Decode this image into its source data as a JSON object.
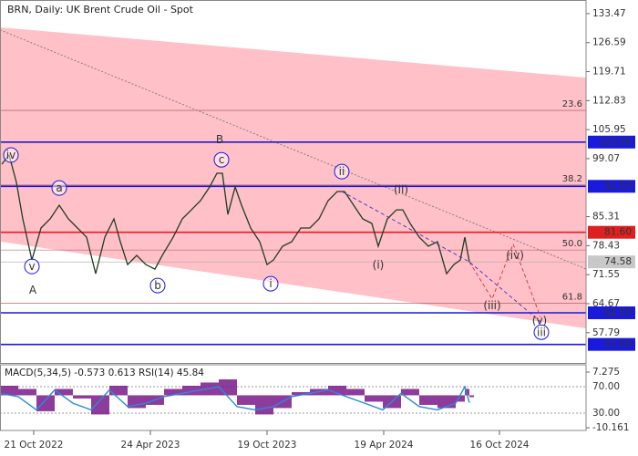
{
  "chart_data": [
    {
      "type": "line",
      "title": "BRN, Daily:  UK Brent Crude Oil - Spot",
      "xlim": [
        0,
        643
      ],
      "xticks": [
        {
          "value": 37,
          "label": "21 Oct 2022"
        },
        {
          "value": 165,
          "label": "24 Apr 2023"
        },
        {
          "value": 293,
          "label": "19 Oct 2023"
        },
        {
          "value": 421,
          "label": "19 Apr 2024"
        },
        {
          "value": 548,
          "label": "16 Oct 2024"
        }
      ],
      "ylim": [
        50.6,
        136.7
      ],
      "yticks": [
        133.47,
        126.59,
        119.71,
        112.83,
        105.95,
        99.07,
        85.31,
        78.43,
        71.55,
        64.67,
        57.79
      ],
      "channel": {
        "upper": [
          130.2,
          118.3
        ],
        "lower": [
          79.4,
          58.8
        ],
        "color": "#ffc0c8"
      },
      "trendline": {
        "values": [
          129.6,
          72.9
        ],
        "color": "#777"
      },
      "fib_levels": [
        {
          "label": "23.6",
          "value": 110.5
        },
        {
          "label": "38.2",
          "value": 92.8
        },
        {
          "label": "50.0",
          "value": 77.4
        },
        {
          "label": "61.8",
          "value": 64.8
        }
      ],
      "levels": [
        {
          "value": 103,
          "label": "103.00",
          "color": "#1a1adc"
        },
        {
          "value": 92.5,
          "label": "92.50",
          "color": "#1a1adc"
        },
        {
          "value": 81.6,
          "label": "81.60",
          "color": "#e02020"
        },
        {
          "value": 62.5,
          "label": "62.50",
          "color": "#1a1adc"
        },
        {
          "value": 55,
          "label": "55.00",
          "color": "#1a1adc"
        }
      ],
      "current_price": 74.58,
      "price": {
        "color": "#1f3d1f",
        "x": [
          2,
          10,
          18,
          25,
          35,
          45,
          55,
          65,
          75,
          85,
          95,
          105,
          115,
          125,
          132,
          140,
          150,
          160,
          170,
          178,
          190,
          200,
          210,
          220,
          230,
          238,
          244,
          250,
          258,
          265,
          275,
          285,
          293,
          300,
          310,
          320,
          330,
          340,
          350,
          360,
          370,
          378,
          388,
          398,
          408,
          415,
          425,
          435,
          442,
          450,
          460,
          470,
          480,
          490,
          498,
          505,
          510,
          515
        ],
        "values": [
          97.76,
          99.92,
          93.43,
          84.77,
          75.03,
          82.61,
          84.77,
          88.02,
          84.77,
          82.61,
          80.44,
          71.78,
          80.44,
          84.77,
          79.36,
          73.94,
          76.11,
          73.94,
          72.86,
          76.11,
          80.44,
          84.77,
          86.93,
          89.1,
          92.35,
          95.6,
          95.6,
          85.85,
          92.35,
          88.02,
          82.61,
          79.36,
          73.94,
          75.03,
          78.28,
          79.36,
          82.61,
          82.61,
          84.77,
          89.1,
          91.26,
          91.26,
          88.02,
          84.77,
          83.69,
          78.28,
          84.77,
          86.93,
          86.93,
          83.69,
          80.44,
          78.28,
          79.36,
          71.78,
          73.94,
          75.03,
          80.44,
          74.58
        ]
      },
      "forecast": [
        {
          "color": "#d03030",
          "x": [
            515,
            540,
            563,
            593
          ],
          "values": [
            74.58,
            65.8,
            78.8,
            61.5
          ]
        },
        {
          "color": "#3333cc",
          "x": [
            375,
            515,
            595
          ],
          "values": [
            91.3,
            74.58,
            60.0
          ]
        }
      ],
      "annotations": [
        {
          "text": "iv",
          "x": 12,
          "y": 99.92,
          "circled": true,
          "color": "#1a1adc"
        },
        {
          "text": "v",
          "x": 35,
          "y": 73.5,
          "circled": true,
          "color": "#1a1adc"
        },
        {
          "text": "A",
          "x": 36,
          "y": 67.9,
          "circled": false,
          "color": "#a03020"
        },
        {
          "text": "a",
          "x": 65,
          "y": 92.1,
          "circled": true,
          "color": "#1a1adc"
        },
        {
          "text": "b",
          "x": 173,
          "y": 68.97,
          "circled": true,
          "color": "#1a1adc"
        },
        {
          "text": "B",
          "x": 241,
          "y": 103.6,
          "circled": false,
          "color": "#a03020"
        },
        {
          "text": "c",
          "x": 243,
          "y": 98.8,
          "circled": true,
          "color": "#1a1adc"
        },
        {
          "text": "i",
          "x": 297,
          "y": 69.4,
          "circled": true,
          "color": "#1a1adc"
        },
        {
          "text": "ii",
          "x": 375,
          "y": 96.0,
          "circled": true,
          "color": "#1a1adc"
        },
        {
          "text": "(i)",
          "x": 415,
          "y": 73.9,
          "circled": false,
          "color": "#d03030"
        },
        {
          "text": "(ii)",
          "x": 440,
          "y": 91.7,
          "circled": false,
          "color": "#d03030"
        },
        {
          "text": "(iii)",
          "x": 540,
          "y": 64.2,
          "circled": false,
          "color": "#d03030"
        },
        {
          "text": "(iv)",
          "x": 565,
          "y": 76.1,
          "circled": false,
          "color": "#d03030"
        },
        {
          "text": "(v)",
          "x": 592,
          "y": 60.7,
          "circled": false,
          "color": "#d03030"
        },
        {
          "text": "iii",
          "x": 594,
          "y": 57.9,
          "circled": true,
          "color": "#1a1adc"
        }
      ]
    },
    {
      "type": "indicator",
      "title": "MACD(5,34,5) -0.573 0.613 RSI(14) 45.84",
      "xlim": [
        0,
        643
      ],
      "ylim": [
        -11.02,
        9.56
      ],
      "yticks": [
        7.275,
        -10.161
      ],
      "y2lim": [
        3.8,
        103.1
      ],
      "y2ticks": [
        {
          "value": 70,
          "label": "70.00"
        },
        {
          "value": 30,
          "label": "30.00"
        }
      ],
      "x": [
        0,
        20,
        40,
        60,
        80,
        100,
        120,
        140,
        160,
        180,
        200,
        220,
        240,
        260,
        280,
        300,
        320,
        340,
        360,
        380,
        400,
        420,
        440,
        460,
        480,
        500,
        510,
        515
      ],
      "series": [
        {
          "name": "MACD",
          "color": "#7a1a8a",
          "values": [
            3,
            2,
            -5,
            2,
            -1,
            -6,
            3,
            -4,
            -3,
            2,
            3,
            4,
            5,
            -3,
            -6,
            -4,
            1,
            2,
            3,
            2,
            -2,
            -4,
            2,
            -3,
            -4,
            -2,
            2,
            -0.573
          ]
        },
        {
          "name": "RSI",
          "color": "#2a8ae0",
          "axis": "y2",
          "values": [
            60,
            55,
            35,
            65,
            45,
            35,
            65,
            40,
            45,
            55,
            60,
            65,
            70,
            40,
            35,
            40,
            55,
            60,
            65,
            55,
            45,
            35,
            60,
            40,
            35,
            45,
            70,
            45.84
          ]
        }
      ]
    }
  ]
}
